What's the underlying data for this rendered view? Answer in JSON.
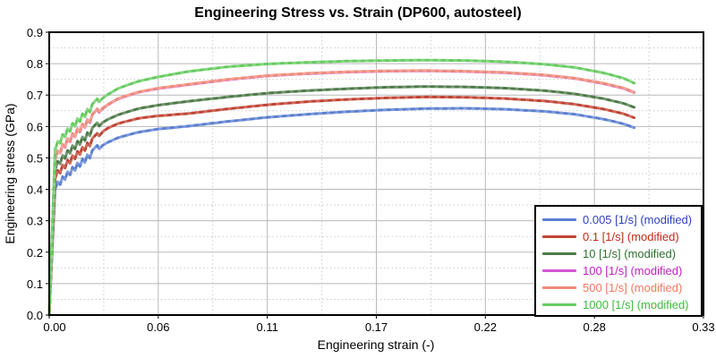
{
  "chart_data": {
    "type": "line",
    "title": "Engineering Stress vs. Strain (DP600, autosteel)",
    "xlabel": "Engineering strain (-)",
    "ylabel": "Engineering stress (GPa)",
    "xlim": [
      0,
      0.33
    ],
    "ylim": [
      0,
      0.9
    ],
    "x_ticks": {
      "values": [
        0,
        0.055,
        0.11,
        0.165,
        0.22,
        0.275,
        0.33
      ],
      "labels": [
        "0.00",
        "0.06",
        "0.11",
        "0.17",
        "0.22",
        "0.28",
        "0.33"
      ]
    },
    "y_ticks": {
      "values": [
        0,
        0.1,
        0.2,
        0.3,
        0.4,
        0.5,
        0.6,
        0.7,
        0.8,
        0.9
      ],
      "labels": [
        "0.0",
        "0.1",
        "0.2",
        "0.3",
        "0.4",
        "0.5",
        "0.6",
        "0.7",
        "0.8",
        "0.9"
      ]
    },
    "grid": {
      "major": "solid",
      "minor": "dotted"
    },
    "legend_position": "bottom-right",
    "serration": {
      "start": 0.003,
      "end": 0.023,
      "period": 0.0025,
      "amplitude": 0.011,
      "end_spike_factor": 1.8
    },
    "strains": [
      0,
      0.003,
      0.006,
      0.01,
      0.014,
      0.018,
      0.023,
      0.028,
      0.035,
      0.045,
      0.055,
      0.07,
      0.09,
      0.11,
      0.13,
      0.15,
      0.17,
      0.19,
      0.21,
      0.23,
      0.25,
      0.265,
      0.28,
      0.29,
      0.295
    ],
    "series": [
      {
        "name": "0.005 [1/s] (modified)",
        "line_color": "#5b7fd0",
        "text_color": "#2f3fc6",
        "stress": [
          0,
          0.405,
          0.425,
          0.45,
          0.472,
          0.492,
          0.52,
          0.545,
          0.565,
          0.582,
          0.592,
          0.601,
          0.616,
          0.629,
          0.639,
          0.647,
          0.653,
          0.657,
          0.658,
          0.655,
          0.648,
          0.639,
          0.623,
          0.608,
          0.596
        ]
      },
      {
        "name": "0.1 [1/s] (modified)",
        "line_color": "#bf4434",
        "text_color": "#c32a16",
        "stress": [
          0,
          0.44,
          0.462,
          0.487,
          0.509,
          0.53,
          0.558,
          0.59,
          0.61,
          0.626,
          0.634,
          0.641,
          0.656,
          0.669,
          0.679,
          0.686,
          0.691,
          0.694,
          0.693,
          0.689,
          0.681,
          0.671,
          0.655,
          0.64,
          0.628
        ]
      },
      {
        "name": "10 [1/s] (modified)",
        "line_color": "#4d7a48",
        "text_color": "#2f7030",
        "stress": [
          0,
          0.468,
          0.492,
          0.518,
          0.541,
          0.562,
          0.592,
          0.618,
          0.638,
          0.657,
          0.668,
          0.68,
          0.694,
          0.706,
          0.714,
          0.72,
          0.725,
          0.727,
          0.726,
          0.722,
          0.714,
          0.704,
          0.688,
          0.673,
          0.661
        ]
      },
      {
        "name": "100 [1/s] (modified)",
        "line_color": "#d456d4",
        "text_color": "#bf1fbf",
        "stress": [
          0,
          0.499,
          0.526,
          0.555,
          0.58,
          0.603,
          0.635,
          0.663,
          0.689,
          0.709,
          0.721,
          0.733,
          0.749,
          0.761,
          0.768,
          0.773,
          0.776,
          0.777,
          0.775,
          0.771,
          0.763,
          0.753,
          0.736,
          0.721,
          0.708
        ]
      },
      {
        "name": "500 [1/s] (modified)",
        "line_color": "#ef8b7c",
        "text_color": "#f4785c",
        "stress": [
          0,
          0.5,
          0.527,
          0.556,
          0.581,
          0.604,
          0.636,
          0.664,
          0.69,
          0.71,
          0.722,
          0.734,
          0.75,
          0.762,
          0.769,
          0.774,
          0.777,
          0.778,
          0.776,
          0.772,
          0.764,
          0.754,
          0.737,
          0.722,
          0.709
        ]
      },
      {
        "name": "1000 [1/s] (modified)",
        "line_color": "#66cb60",
        "text_color": "#3dbb3d",
        "stress": [
          0,
          0.53,
          0.558,
          0.588,
          0.613,
          0.637,
          0.668,
          0.696,
          0.722,
          0.744,
          0.758,
          0.775,
          0.79,
          0.799,
          0.804,
          0.808,
          0.81,
          0.811,
          0.81,
          0.806,
          0.798,
          0.788,
          0.77,
          0.753,
          0.738
        ]
      }
    ]
  },
  "colors": {
    "frame": "#000000",
    "grid_major": "#b9b9b9",
    "grid_minor": "#c9c9c9",
    "tick": "#000000",
    "background": "#ffffff"
  }
}
